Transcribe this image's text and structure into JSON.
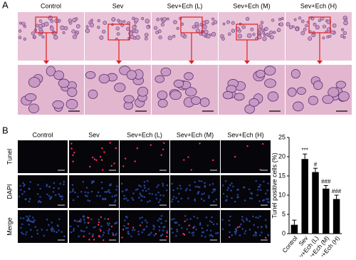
{
  "panel_a": {
    "label": "A",
    "columns": [
      "Control",
      "Sev",
      "Sev+Ech (L)",
      "Sev+Ech (M)",
      "Sev+Ech (H)"
    ]
  },
  "panel_b": {
    "label": "B",
    "columns": [
      "Control",
      "Sev",
      "Sev+Ech (L)",
      "Sev+Ech (M)",
      "Sev+Ech (H)"
    ],
    "rows": [
      "Tunel",
      "DAPI",
      "Merge"
    ]
  },
  "chart_data": {
    "type": "bar",
    "ylabel": "Tunel positive cells (%)",
    "categories": [
      "Control",
      "Sev",
      "Sev+Ech (L)",
      "Sev+Ech (M)",
      "Sev+Ech (H)"
    ],
    "values": [
      2.3,
      19.4,
      16.0,
      11.7,
      9.0
    ],
    "errors": [
      1.2,
      1.3,
      1.0,
      0.8,
      1.0
    ],
    "significance": [
      null,
      "***",
      "#",
      "###",
      "###"
    ],
    "color": "#000000",
    "ylim": [
      0,
      25
    ],
    "yticks": [
      0,
      5,
      10,
      15,
      20,
      25
    ]
  }
}
